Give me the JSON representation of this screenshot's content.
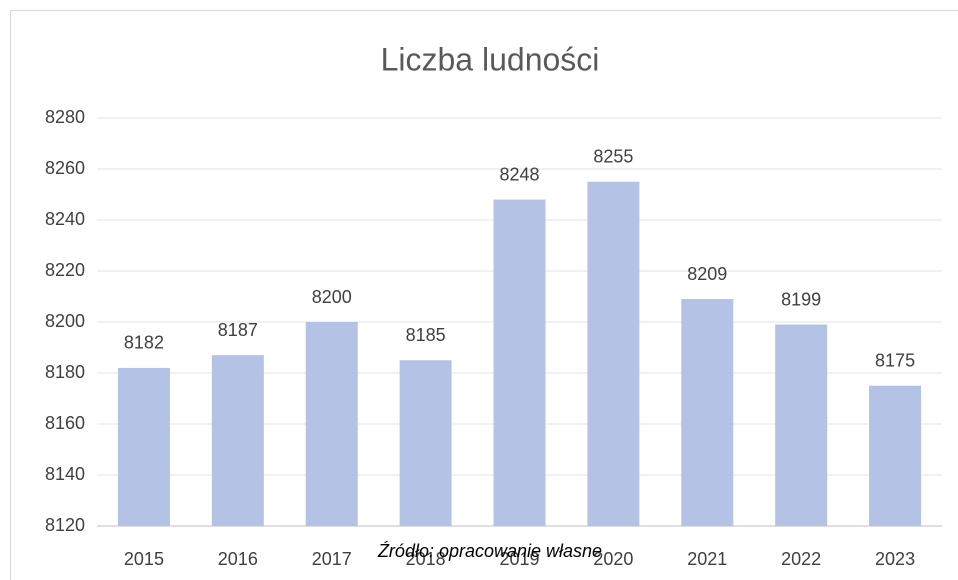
{
  "chart_data": {
    "type": "bar",
    "title": "Liczba ludności",
    "categories": [
      "2015",
      "2016",
      "2017",
      "2018",
      "2019",
      "2020",
      "2021",
      "2022",
      "2023"
    ],
    "values": [
      8182,
      8187,
      8200,
      8185,
      8248,
      8255,
      8209,
      8199,
      8175
    ],
    "color": "#b4c3e5",
    "ylim": [
      8120,
      8280
    ],
    "yticks": [
      8120,
      8140,
      8160,
      8180,
      8200,
      8220,
      8240,
      8260,
      8280
    ],
    "grid": true,
    "data_labels": true,
    "annotation": "Źródło: opracowanie własne"
  }
}
